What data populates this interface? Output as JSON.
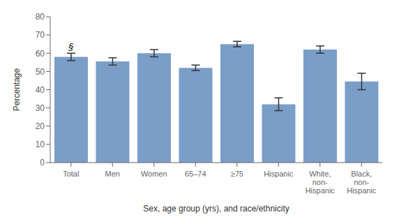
{
  "chart_data": {
    "type": "bar",
    "categories": [
      "Total",
      "Men",
      "Women",
      "65–74",
      "≥75",
      "Hispanic",
      "White,\nnon-\nHispanic",
      "Black,\nnon-\nHispanic"
    ],
    "values": [
      58.0,
      55.5,
      60.0,
      52.0,
      65.0,
      32.0,
      62.0,
      44.5
    ],
    "errors": [
      2.0,
      2.0,
      2.0,
      1.5,
      1.5,
      3.5,
      2.0,
      4.5
    ],
    "color": "#7b9ec8",
    "ylabel": "Percentage",
    "xlabel": "Sex, age group (yrs), and race/ethnicity",
    "ylim": [
      0,
      80
    ],
    "yticks": [
      0,
      10,
      20,
      30,
      40,
      50,
      60,
      70,
      80
    ],
    "grid": false,
    "annotations": [
      {
        "text": "§",
        "category": "Total"
      }
    ]
  }
}
